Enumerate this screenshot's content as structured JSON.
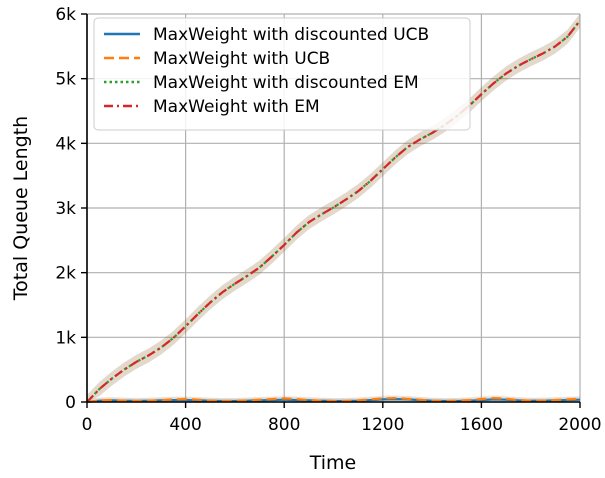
{
  "chart_data": {
    "type": "line",
    "xlabel": "Time",
    "ylabel": "Total Queue Length",
    "xlim": [
      0,
      2000
    ],
    "ylim": [
      0,
      6000
    ],
    "x_ticks": [
      0,
      400,
      800,
      1200,
      1600,
      2000
    ],
    "x_tick_labels": [
      "0",
      "400",
      "800",
      "1200",
      "1600",
      "2000"
    ],
    "y_ticks": [
      0,
      1000,
      2000,
      3000,
      4000,
      5000,
      6000
    ],
    "y_tick_labels": [
      "0",
      "1k",
      "2k",
      "3k",
      "4k",
      "5k",
      "6k"
    ],
    "grid": true,
    "legend_position": "top-left",
    "x": [
      0,
      50,
      100,
      150,
      200,
      250,
      300,
      350,
      400,
      450,
      500,
      550,
      600,
      650,
      700,
      750,
      800,
      850,
      900,
      950,
      1000,
      1050,
      1100,
      1150,
      1200,
      1250,
      1300,
      1350,
      1400,
      1450,
      1500,
      1550,
      1600,
      1650,
      1700,
      1750,
      1800,
      1850,
      1900,
      1950,
      2000
    ],
    "series": [
      {
        "name": "MaxWeight with discounted UCB",
        "color": "#1f77b4",
        "style": "solid",
        "values": [
          0,
          20,
          25,
          20,
          15,
          20,
          25,
          30,
          30,
          25,
          20,
          15,
          15,
          20,
          25,
          30,
          35,
          30,
          25,
          20,
          15,
          15,
          20,
          30,
          40,
          45,
          40,
          30,
          20,
          15,
          15,
          20,
          30,
          40,
          35,
          25,
          20,
          20,
          25,
          30,
          35
        ]
      },
      {
        "name": "MaxWeight with UCB",
        "color": "#ff7f0e",
        "style": "dashed",
        "values": [
          0,
          25,
          30,
          20,
          15,
          20,
          30,
          40,
          45,
          35,
          20,
          15,
          15,
          25,
          35,
          45,
          55,
          45,
          30,
          20,
          15,
          15,
          25,
          40,
          55,
          60,
          50,
          35,
          20,
          15,
          20,
          30,
          45,
          60,
          50,
          30,
          20,
          20,
          30,
          40,
          50
        ]
      },
      {
        "name": "MaxWeight with discounted EM",
        "color": "#2ca02c",
        "style": "dotted",
        "values": [
          0,
          200,
          360,
          500,
          620,
          720,
          840,
          990,
          1170,
          1360,
          1540,
          1700,
          1830,
          1950,
          2080,
          2250,
          2430,
          2620,
          2780,
          2900,
          3010,
          3130,
          3260,
          3420,
          3600,
          3780,
          3940,
          4060,
          4160,
          4280,
          4420,
          4580,
          4760,
          4930,
          5080,
          5200,
          5300,
          5390,
          5500,
          5650,
          5900
        ]
      },
      {
        "name": "MaxWeight with EM",
        "color": "#d62728",
        "style": "dashdot",
        "values": [
          0,
          200,
          360,
          500,
          620,
          720,
          840,
          990,
          1170,
          1360,
          1540,
          1700,
          1830,
          1950,
          2080,
          2250,
          2430,
          2620,
          2780,
          2900,
          3010,
          3130,
          3260,
          3420,
          3600,
          3780,
          3940,
          4060,
          4160,
          4280,
          4420,
          4580,
          4760,
          4930,
          5080,
          5200,
          5300,
          5390,
          5500,
          5650,
          5900
        ]
      }
    ]
  }
}
